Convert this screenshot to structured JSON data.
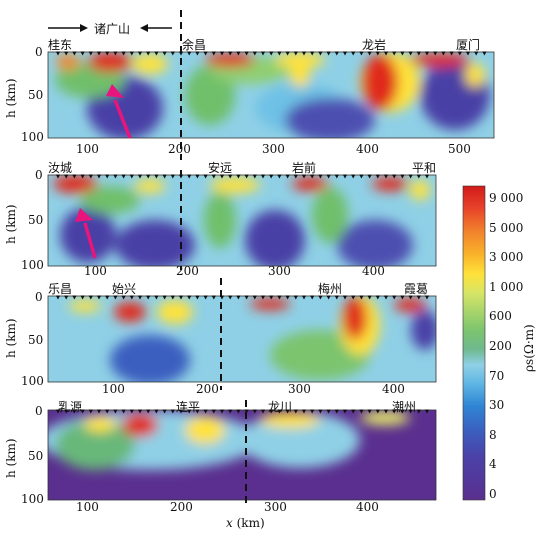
{
  "top_annotation": {
    "label": "诸广山"
  },
  "x_axis": {
    "label_x": "x",
    "label_unit": "(km)"
  },
  "y_axis_label": "h (km)",
  "panels": [
    {
      "id": "p1",
      "places": [
        "桂东",
        "余昌",
        "龙岩",
        "厦门"
      ],
      "x_ticks": [
        "100",
        "200",
        "300",
        "400",
        "500"
      ],
      "y_ticks": [
        "0",
        "50",
        "100"
      ]
    },
    {
      "id": "p2",
      "places": [
        "汝城",
        "安远",
        "岩前",
        "平和"
      ],
      "x_ticks": [
        "100",
        "200",
        "300",
        "400"
      ],
      "y_ticks": [
        "0",
        "50",
        "100"
      ]
    },
    {
      "id": "p3",
      "places": [
        "乐昌",
        "始兴",
        "梅州",
        "霞葛"
      ],
      "x_ticks": [
        "100",
        "200",
        "300",
        "400"
      ],
      "y_ticks": [
        "0",
        "50",
        "100"
      ]
    },
    {
      "id": "p4",
      "places": [
        "乳源",
        "连平",
        "龙川",
        "潮州"
      ],
      "x_ticks": [
        "100",
        "200",
        "300",
        "400"
      ],
      "y_ticks": [
        "0",
        "50",
        "100"
      ]
    }
  ],
  "legend": {
    "title": "ρs(Ω·m)",
    "ticks": [
      "9 000",
      "5 000",
      "3 000",
      "1 000",
      "600",
      "200",
      "70",
      "30",
      "8",
      "4",
      "0"
    ],
    "colors": [
      "#d11a1a",
      "#e83a2a",
      "#f26a2c",
      "#f9a22a",
      "#ffe23a",
      "#e8ef6a",
      "#b9dc6a",
      "#8fcf6f",
      "#67b87a",
      "#5fb5a5",
      "#8fd0e6",
      "#4aa8e0",
      "#2f7fd0",
      "#3a55b8",
      "#4a3fa6",
      "#5a2f8f"
    ]
  },
  "colors": {
    "bg_deep": "#4b3aa0",
    "bg_mid": "#8fd0e6",
    "green": "#6fbf6a",
    "yellow": "#ffe23a",
    "red": "#e02a1e",
    "arrow": "#e8157d"
  }
}
